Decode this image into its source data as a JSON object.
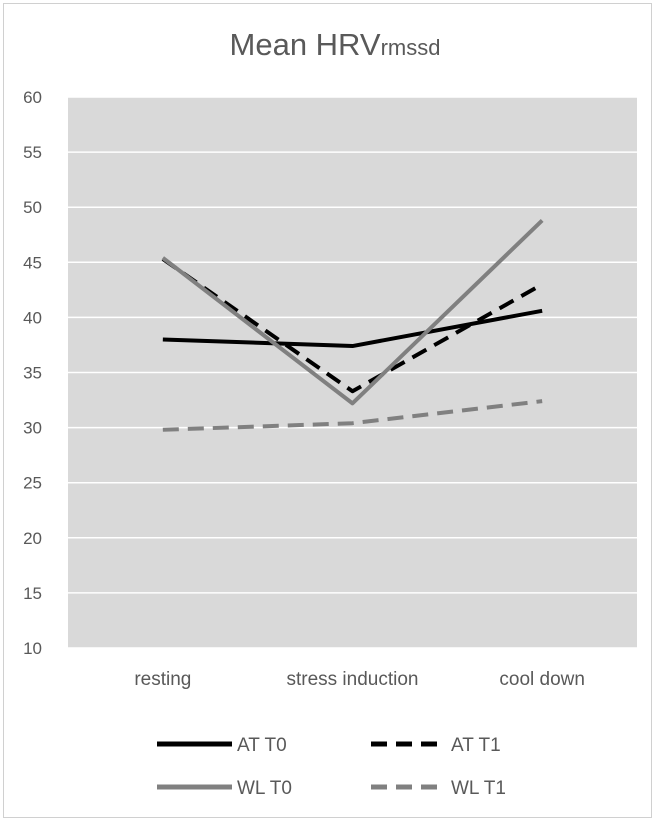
{
  "chart_data": {
    "type": "line",
    "title": "Mean HRV",
    "title_subscript": "rmssd",
    "categories": [
      "resting",
      "stress induction",
      "cool down"
    ],
    "ylim": [
      10,
      60
    ],
    "yticks": [
      10,
      15,
      20,
      25,
      30,
      35,
      40,
      45,
      50,
      55,
      60
    ],
    "grid": true,
    "legend_position": "bottom",
    "series": [
      {
        "name": "AT  T0",
        "values": [
          38.0,
          37.4,
          40.6
        ],
        "color": "#000000",
        "dashed": false
      },
      {
        "name": "AT  T1",
        "values": [
          45.3,
          33.3,
          43.0
        ],
        "color": "#000000",
        "dashed": true
      },
      {
        "name": "WL  T0",
        "values": [
          45.4,
          32.2,
          48.8
        ],
        "color": "#808080",
        "dashed": false
      },
      {
        "name": "WL  T1",
        "values": [
          29.8,
          30.4,
          32.4
        ],
        "color": "#808080",
        "dashed": true
      }
    ],
    "plot_background": "#d9d9d9",
    "gridline_color": "#ffffff"
  }
}
